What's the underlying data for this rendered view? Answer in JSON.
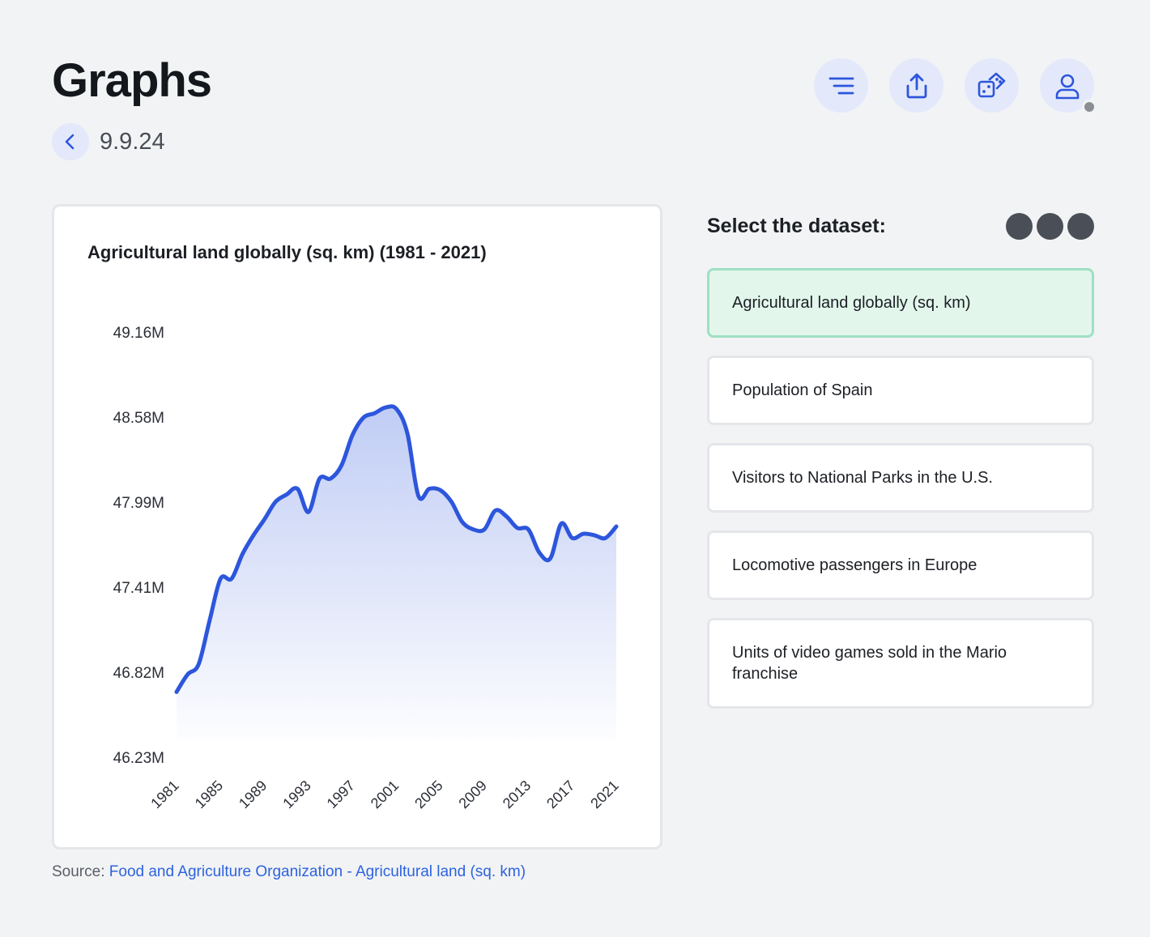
{
  "header": {
    "title": "Graphs",
    "date": "9.9.24"
  },
  "toolbar": {
    "icons": [
      "menu-icon",
      "share-icon",
      "dice-icon",
      "user-icon"
    ]
  },
  "panel": {
    "title": "Select the dataset:",
    "datasets": [
      {
        "label": "Agricultural land globally (sq. km)",
        "selected": true
      },
      {
        "label": "Population of Spain",
        "selected": false
      },
      {
        "label": "Visitors to National Parks in the U.S.",
        "selected": false
      },
      {
        "label": "Locomotive passengers in Europe",
        "selected": false
      },
      {
        "label": "Units of video games sold in the Mario franchise",
        "selected": false
      }
    ]
  },
  "source": {
    "prefix": "Source: ",
    "link_text": "Food and Agriculture Organization - Agricultural land (sq. km)"
  },
  "colors": {
    "accent": "#2d56dc",
    "selected_bg": "#e2f6ec",
    "selected_border": "#9fe0c2"
  },
  "chart_data": {
    "type": "area",
    "title": "Agricultural land globally (sq. km) (1981 - 2021)",
    "xlabel": "",
    "ylabel": "",
    "x_tick_labels": [
      "1981",
      "1985",
      "1989",
      "1993",
      "1997",
      "2001",
      "2005",
      "2009",
      "2013",
      "2017",
      "2021"
    ],
    "y_tick_labels": [
      "46.23M",
      "46.82M",
      "47.41M",
      "47.99M",
      "48.58M",
      "49.16M"
    ],
    "ylim": [
      46.23,
      49.16
    ],
    "y_unit": "M sq. km",
    "grid": false,
    "series": [
      {
        "x": [
          1981,
          1982,
          1983,
          1984,
          1985,
          1986,
          1987,
          1988,
          1989,
          1990,
          1991,
          1992,
          1993,
          1994,
          1995,
          1996,
          1997,
          1998,
          1999,
          2000,
          2001,
          2002,
          2003,
          2004,
          2005,
          2006,
          2007,
          2008,
          2009,
          2010,
          2011,
          2012,
          2013,
          2014,
          2015,
          2016,
          2017,
          2018,
          2019,
          2020,
          2021
        ],
        "values": [
          46.68,
          46.8,
          46.87,
          47.17,
          47.46,
          47.46,
          47.63,
          47.76,
          47.87,
          47.99,
          48.04,
          48.08,
          47.92,
          48.15,
          48.15,
          48.24,
          48.45,
          48.57,
          48.6,
          48.64,
          48.63,
          48.46,
          48.03,
          48.08,
          48.07,
          47.99,
          47.85,
          47.8,
          47.8,
          47.93,
          47.89,
          47.81,
          47.8,
          47.64,
          47.6,
          47.84,
          47.74,
          47.77,
          47.76,
          47.74,
          47.82
        ]
      }
    ]
  }
}
